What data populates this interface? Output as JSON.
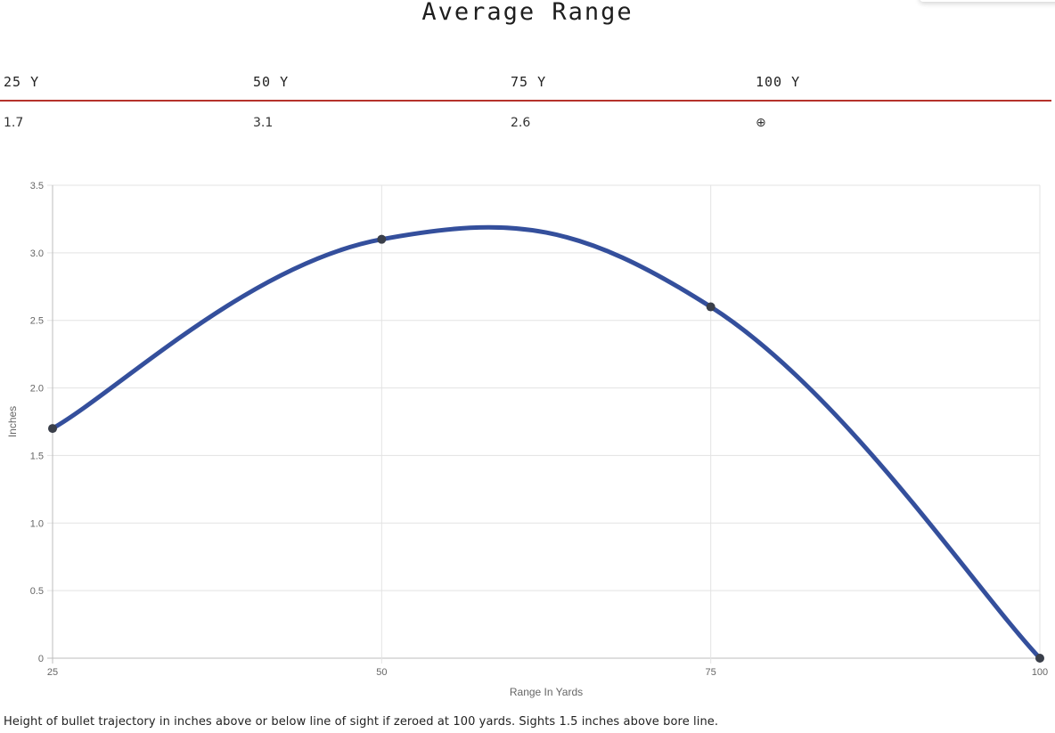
{
  "title": "Average Range",
  "table": {
    "headers": [
      "25 Y",
      "50 Y",
      "75 Y",
      "100 Y"
    ],
    "values": [
      "1.7",
      "3.1",
      "2.6",
      "⊕"
    ]
  },
  "caption": "Height of bullet trajectory in inches above or below line of sight if zeroed at 100 yards. Sights 1.5 inches above bore line.",
  "chart_data": {
    "type": "line",
    "x": [
      25,
      50,
      75,
      100
    ],
    "series": [
      {
        "values": [
          1.7,
          3.1,
          2.6,
          0
        ],
        "color": "#344f9c"
      }
    ],
    "xlabel": "Range In Yards",
    "ylabel": "Inches",
    "xlim": [
      25,
      100
    ],
    "ylim": [
      0,
      3.5
    ],
    "x_ticks": [
      "25",
      "50",
      "75",
      "100"
    ],
    "y_ticks": [
      "0",
      "0.5",
      "1.0",
      "1.5",
      "2.0",
      "2.5",
      "3.0",
      "3.5"
    ],
    "grid": true,
    "point_color": "#3a3f4a"
  }
}
